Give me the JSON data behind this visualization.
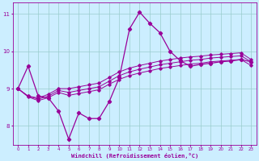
{
  "xlabel": "Windchill (Refroidissement éolien,°C)",
  "background_color": "#cceeff",
  "line_color": "#990099",
  "grid_color": "#99cccc",
  "ylim": [
    7.5,
    11.3
  ],
  "xlim": [
    -0.5,
    23.5
  ],
  "yticks": [
    8,
    9,
    10,
    11
  ],
  "xticks": [
    0,
    1,
    2,
    3,
    4,
    5,
    6,
    7,
    8,
    9,
    10,
    11,
    12,
    13,
    14,
    15,
    16,
    17,
    18,
    19,
    20,
    21,
    22,
    23
  ],
  "y_main": [
    9.0,
    9.6,
    8.8,
    8.75,
    8.4,
    7.65,
    8.35,
    8.2,
    8.2,
    8.65,
    9.3,
    10.6,
    11.05,
    10.75,
    10.5,
    10.0,
    9.75,
    9.6,
    9.65,
    9.68,
    9.72,
    9.74,
    9.78,
    9.72
  ],
  "y_t1": [
    9.0,
    8.8,
    8.75,
    8.85,
    9.0,
    9.0,
    9.05,
    9.1,
    9.15,
    9.3,
    9.45,
    9.55,
    9.62,
    9.68,
    9.74,
    9.78,
    9.82,
    9.85,
    9.87,
    9.9,
    9.92,
    9.94,
    9.96,
    9.78
  ],
  "y_t2": [
    9.0,
    8.8,
    8.72,
    8.8,
    8.95,
    8.9,
    8.95,
    9.0,
    9.05,
    9.2,
    9.35,
    9.45,
    9.52,
    9.58,
    9.64,
    9.68,
    9.72,
    9.76,
    9.78,
    9.82,
    9.84,
    9.86,
    9.88,
    9.72
  ],
  "y_t3": [
    9.0,
    8.78,
    8.68,
    8.76,
    8.9,
    8.82,
    8.87,
    8.92,
    8.97,
    9.12,
    9.25,
    9.35,
    9.42,
    9.48,
    9.54,
    9.58,
    9.62,
    9.66,
    9.68,
    9.72,
    9.74,
    9.76,
    9.78,
    9.62
  ]
}
